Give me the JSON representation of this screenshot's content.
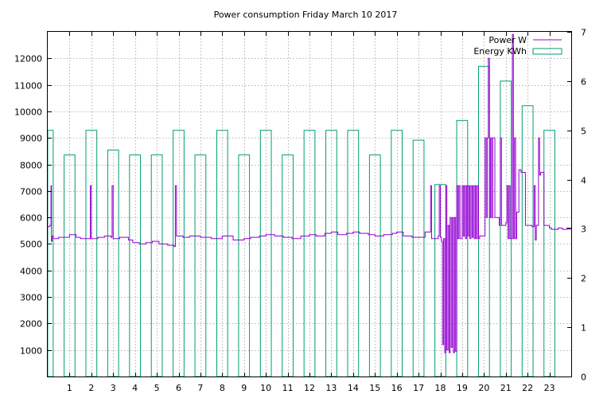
{
  "chart_data": {
    "type": "line",
    "title": "Power consumption Friday March 10 2017",
    "xlabel": "",
    "ylabel": "",
    "x_range": [
      0,
      24
    ],
    "x_ticks": [
      1,
      2,
      3,
      4,
      5,
      6,
      7,
      8,
      9,
      10,
      11,
      12,
      13,
      14,
      15,
      16,
      17,
      18,
      19,
      20,
      21,
      22,
      23
    ],
    "y_left_range": [
      0,
      13000
    ],
    "y_left_ticks": [
      1000,
      2000,
      3000,
      4000,
      5000,
      6000,
      7000,
      8000,
      9000,
      10000,
      11000,
      12000
    ],
    "y_right_range": [
      0,
      7
    ],
    "y_right_ticks": [
      0,
      1,
      2,
      3,
      4,
      5,
      6,
      7
    ],
    "grid": true,
    "legend_position": "top-right",
    "legend": [
      {
        "label": "Power  W",
        "color": "#9400d3",
        "style": "line"
      },
      {
        "label": "Energy KWh",
        "color": "#009e73",
        "style": "box"
      }
    ],
    "series": [
      {
        "name": "Energy KWh",
        "axis": "right",
        "color": "#009e73",
        "type": "bar",
        "x": [
          0,
          1,
          2,
          3,
          4,
          5,
          6,
          7,
          8,
          9,
          10,
          11,
          12,
          13,
          14,
          15,
          16,
          17,
          18,
          19,
          20,
          21,
          22,
          23
        ],
        "values": [
          5.0,
          4.5,
          5.0,
          4.6,
          4.5,
          4.5,
          5.0,
          4.5,
          5.0,
          4.5,
          5.0,
          4.5,
          5.0,
          5.0,
          5.0,
          4.5,
          5.0,
          4.8,
          3.9,
          5.2,
          6.3,
          6.0,
          5.5,
          5.0
        ]
      },
      {
        "name": "Power  W",
        "axis": "left",
        "color": "#9400d3",
        "type": "line",
        "points": [
          [
            0,
            5650
          ],
          [
            0.1,
            5700
          ],
          [
            0.15,
            7200
          ],
          [
            0.17,
            5100
          ],
          [
            0.2,
            5300
          ],
          [
            0.25,
            5200
          ],
          [
            0.5,
            5250
          ],
          [
            0.9,
            5250
          ],
          [
            1,
            5350
          ],
          [
            1.3,
            5250
          ],
          [
            1.5,
            5200
          ],
          [
            1.9,
            5200
          ],
          [
            1.95,
            7200
          ],
          [
            2.0,
            5200
          ],
          [
            2.3,
            5250
          ],
          [
            2.6,
            5300
          ],
          [
            2.9,
            5250
          ],
          [
            2.95,
            7200
          ],
          [
            3.0,
            5200
          ],
          [
            3.3,
            5250
          ],
          [
            3.7,
            5150
          ],
          [
            3.9,
            5050
          ],
          [
            4.2,
            5000
          ],
          [
            4.5,
            5050
          ],
          [
            4.8,
            5100
          ],
          [
            5.1,
            5000
          ],
          [
            5.5,
            4950
          ],
          [
            5.8,
            4900
          ],
          [
            5.85,
            7200
          ],
          [
            5.9,
            5300
          ],
          [
            6.2,
            5250
          ],
          [
            6.5,
            5300
          ],
          [
            7.0,
            5250
          ],
          [
            7.5,
            5200
          ],
          [
            8.0,
            5300
          ],
          [
            8.5,
            5150
          ],
          [
            9.0,
            5200
          ],
          [
            9.3,
            5250
          ],
          [
            9.7,
            5300
          ],
          [
            10.0,
            5350
          ],
          [
            10.4,
            5300
          ],
          [
            10.8,
            5250
          ],
          [
            11.2,
            5200
          ],
          [
            11.6,
            5300
          ],
          [
            12.0,
            5350
          ],
          [
            12.3,
            5300
          ],
          [
            12.7,
            5400
          ],
          [
            13.0,
            5450
          ],
          [
            13.3,
            5350
          ],
          [
            13.7,
            5400
          ],
          [
            14.0,
            5450
          ],
          [
            14.3,
            5400
          ],
          [
            14.7,
            5350
          ],
          [
            15.0,
            5300
          ],
          [
            15.4,
            5350
          ],
          [
            15.8,
            5400
          ],
          [
            16.0,
            5450
          ],
          [
            16.3,
            5300
          ],
          [
            16.7,
            5250
          ],
          [
            17.0,
            5250
          ],
          [
            17.2,
            5250
          ],
          [
            17.3,
            5450
          ],
          [
            17.5,
            5450
          ],
          [
            17.55,
            7200
          ],
          [
            17.6,
            5200
          ],
          [
            17.9,
            5300
          ],
          [
            17.95,
            7200
          ],
          [
            18.0,
            5250
          ],
          [
            18.05,
            5100
          ],
          [
            18.1,
            1200
          ],
          [
            18.15,
            5200
          ],
          [
            18.2,
            900
          ],
          [
            18.25,
            7200
          ],
          [
            18.3,
            1000
          ],
          [
            18.35,
            5700
          ],
          [
            18.4,
            900
          ],
          [
            18.45,
            6000
          ],
          [
            18.5,
            1100
          ],
          [
            18.55,
            6000
          ],
          [
            18.6,
            900
          ],
          [
            18.65,
            6000
          ],
          [
            18.7,
            950
          ],
          [
            18.75,
            7200
          ],
          [
            18.8,
            5200
          ],
          [
            18.85,
            7200
          ],
          [
            18.9,
            5200
          ],
          [
            19.0,
            7200
          ],
          [
            19.05,
            5300
          ],
          [
            19.1,
            7200
          ],
          [
            19.15,
            5200
          ],
          [
            19.2,
            7200
          ],
          [
            19.25,
            5300
          ],
          [
            19.3,
            7200
          ],
          [
            19.35,
            5200
          ],
          [
            19.4,
            7200
          ],
          [
            19.45,
            5250
          ],
          [
            19.5,
            7200
          ],
          [
            19.55,
            5200
          ],
          [
            19.6,
            7200
          ],
          [
            19.65,
            5200
          ],
          [
            19.7,
            7200
          ],
          [
            19.75,
            5200
          ],
          [
            19.8,
            5300
          ],
          [
            20.0,
            5300
          ],
          [
            20.05,
            9000
          ],
          [
            20.1,
            6000
          ],
          [
            20.15,
            9000
          ],
          [
            20.2,
            12000
          ],
          [
            20.25,
            6000
          ],
          [
            20.3,
            9000
          ],
          [
            20.35,
            6000
          ],
          [
            20.4,
            9000
          ],
          [
            20.5,
            6000
          ],
          [
            20.7,
            5700
          ],
          [
            20.75,
            9000
          ],
          [
            20.8,
            5700
          ],
          [
            21.0,
            5800
          ],
          [
            21.05,
            7200
          ],
          [
            21.1,
            5200
          ],
          [
            21.15,
            7200
          ],
          [
            21.2,
            5200
          ],
          [
            21.3,
            12900
          ],
          [
            21.35,
            5200
          ],
          [
            21.4,
            9000
          ],
          [
            21.45,
            5200
          ],
          [
            21.5,
            6200
          ],
          [
            21.6,
            7800
          ],
          [
            21.7,
            7700
          ],
          [
            21.8,
            7700
          ],
          [
            21.9,
            5700
          ],
          [
            22.1,
            5700
          ],
          [
            22.2,
            5650
          ],
          [
            22.3,
            7200
          ],
          [
            22.35,
            5150
          ],
          [
            22.4,
            5700
          ],
          [
            22.5,
            9000
          ],
          [
            22.55,
            7600
          ],
          [
            22.6,
            7700
          ],
          [
            22.7,
            7700
          ],
          [
            22.75,
            5700
          ],
          [
            22.8,
            5700
          ],
          [
            23.0,
            5600
          ],
          [
            23.1,
            5550
          ],
          [
            23.3,
            5550
          ],
          [
            23.4,
            5600
          ],
          [
            23.6,
            5550
          ],
          [
            23.8,
            5600
          ],
          [
            24.0,
            5600
          ]
        ]
      }
    ]
  }
}
